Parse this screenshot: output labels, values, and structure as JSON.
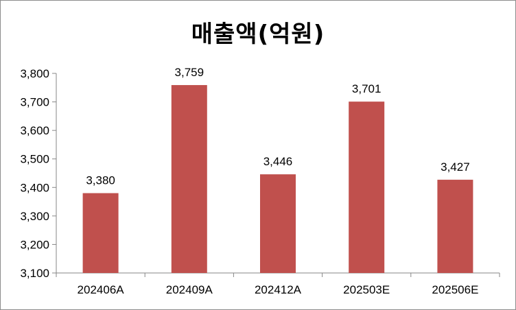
{
  "chart_data": {
    "type": "bar",
    "title": "매출액(억원)",
    "categories": [
      "202406A",
      "202409A",
      "202412A",
      "202503E",
      "202506E"
    ],
    "values": [
      3380,
      3759,
      3446,
      3701,
      3427
    ],
    "value_labels": [
      "3,380",
      "3,759",
      "3,446",
      "3,701",
      "3,427"
    ],
    "ylim": [
      3100,
      3800
    ],
    "yticks": [
      3100,
      3200,
      3300,
      3400,
      3500,
      3600,
      3700,
      3800
    ],
    "ytick_labels": [
      "3,100",
      "3,200",
      "3,300",
      "3,400",
      "3,500",
      "3,600",
      "3,700",
      "3,800"
    ],
    "xlabel": "",
    "ylabel": "",
    "grid": false,
    "legend": "none",
    "bar_color": "#c0504d"
  }
}
